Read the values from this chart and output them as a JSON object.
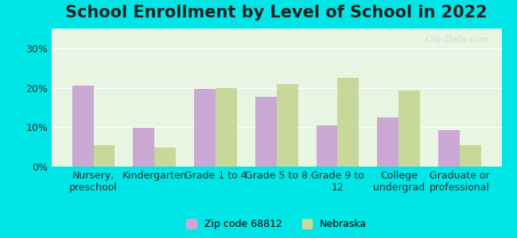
{
  "title": "School Enrollment by Level of School in 2022",
  "categories": [
    "Nursery,\npreschool",
    "Kindergarten",
    "Grade 1 to 4",
    "Grade 5 to 8",
    "Grade 9 to\n12",
    "College\nundergrad",
    "Graduate or\nprofessional"
  ],
  "zip_values": [
    20.5,
    9.8,
    19.8,
    17.8,
    10.5,
    12.5,
    9.3
  ],
  "nebraska_values": [
    5.5,
    4.8,
    20.0,
    21.0,
    22.5,
    19.3,
    5.5
  ],
  "zip_color": "#c9a8d4",
  "nebraska_color": "#c8d89a",
  "background_outer": "#00e5e5",
  "background_inner": "#e8f5e2",
  "ylim": [
    0,
    35
  ],
  "yticks": [
    0,
    10,
    20,
    30
  ],
  "ytick_labels": [
    "0%",
    "10%",
    "20%",
    "30%"
  ],
  "legend_zip_label": "Zip code 68812",
  "legend_nebraska_label": "Nebraska",
  "watermark": "City-Data.com",
  "title_fontsize": 15,
  "tick_fontsize": 9,
  "legend_fontsize": 9
}
